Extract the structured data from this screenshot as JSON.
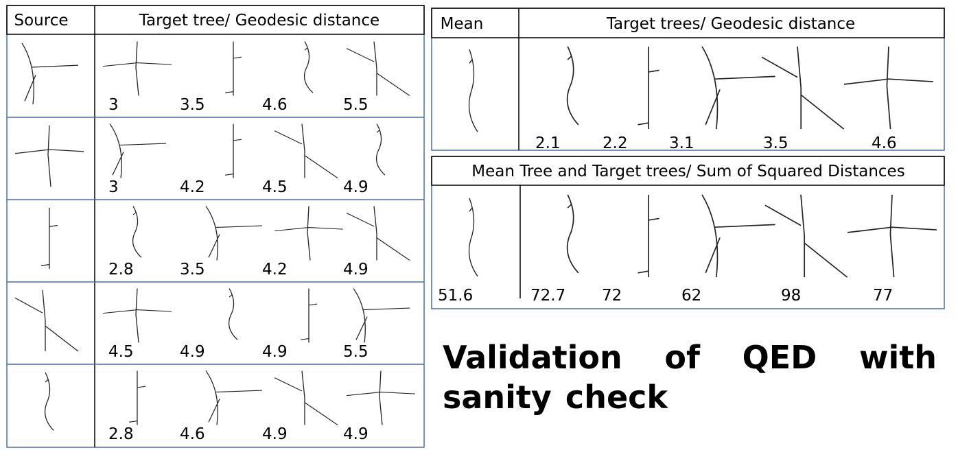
{
  "left_table": {
    "headers": [
      "Source",
      "Target tree/ Geodesic distance"
    ],
    "rows": [
      [
        3,
        3.5,
        4.6,
        5.5
      ],
      [
        3,
        4.2,
        4.5,
        4.9
      ],
      [
        2.8,
        3.5,
        4.2,
        4.9
      ],
      [
        4.5,
        4.9,
        4.9,
        5.5
      ],
      [
        2.8,
        4.6,
        4.9,
        4.9
      ]
    ]
  },
  "mean_table": {
    "headers": [
      "Mean",
      "Target trees/ Geodesic distance"
    ],
    "values": [
      2.1,
      2.2,
      3.1,
      3.5,
      4.6
    ]
  },
  "ssd_table": {
    "title": "Mean Tree and Target trees/ Sum of Squared Distances",
    "mean_value": 51.6,
    "values": [
      72.7,
      72,
      62,
      98,
      77
    ]
  },
  "caption": "Validation of QED with sanity check"
}
